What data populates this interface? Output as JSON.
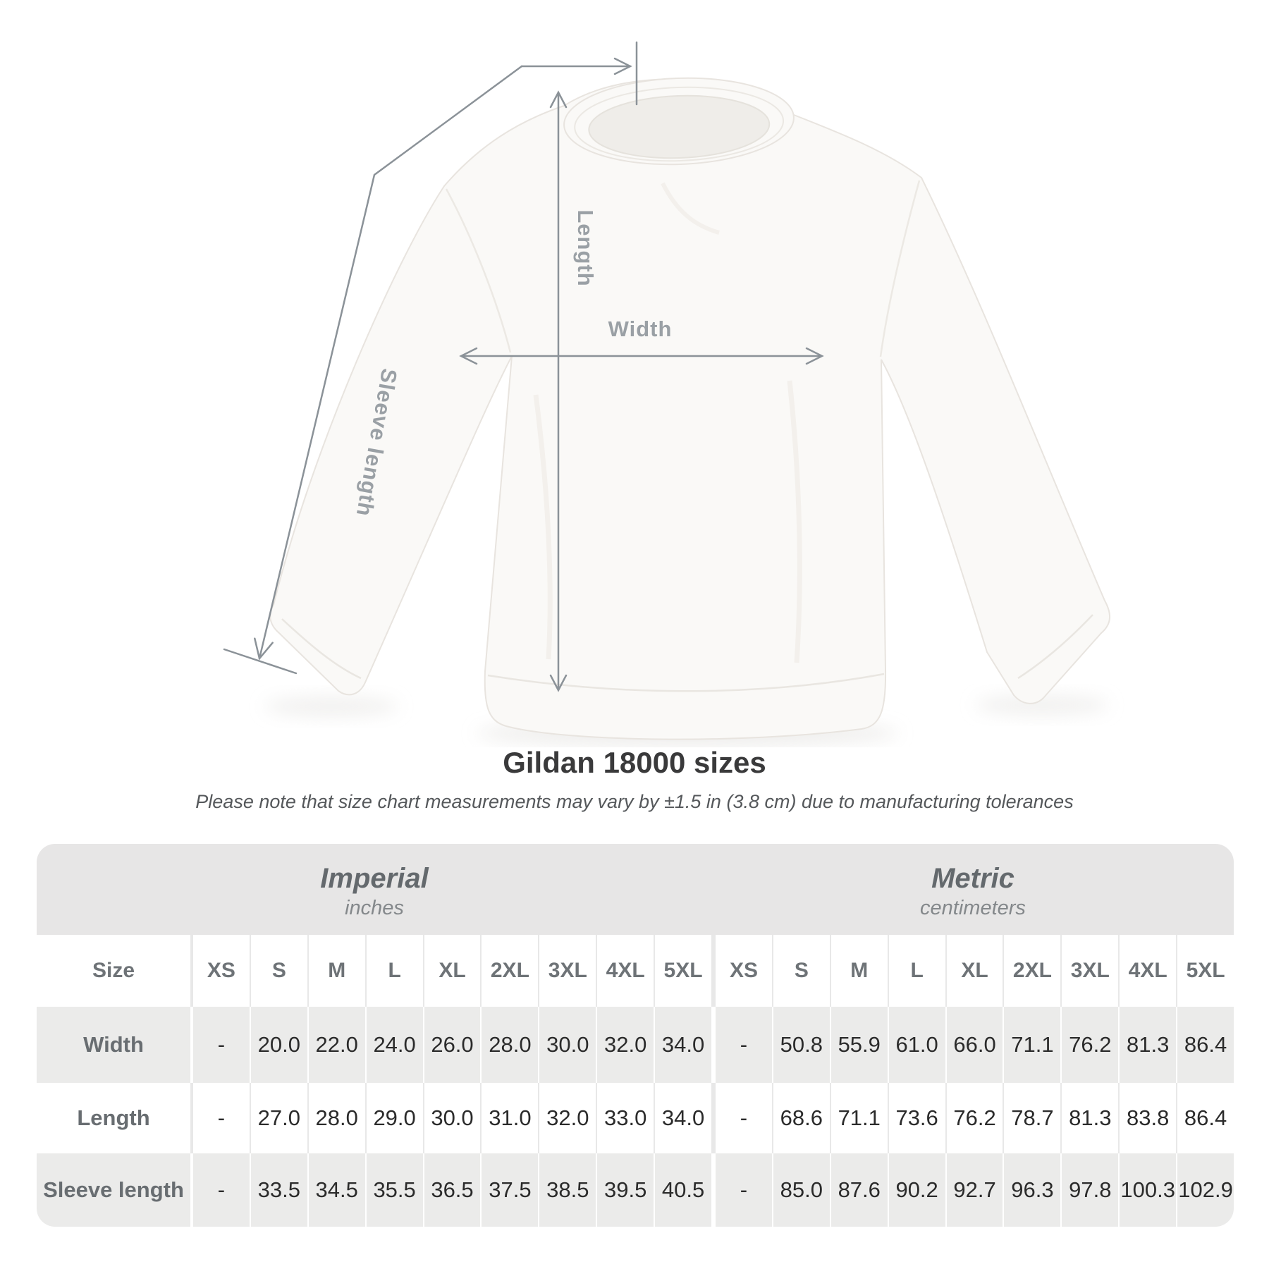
{
  "diagram": {
    "labels": {
      "length": "Length",
      "width": "Width",
      "sleeve": "Sleeve length"
    },
    "line_color": "#8b9298",
    "label_color": "#9aa0a5"
  },
  "heading": {
    "title": "Gildan 18000 sizes",
    "note": "Please note that size chart measurements may vary by ±1.5 in (3.8 cm) due to manufacturing tolerances"
  },
  "table": {
    "groups": [
      {
        "label": "Imperial",
        "sublabel": "inches"
      },
      {
        "label": "Metric",
        "sublabel": "centimeters"
      }
    ],
    "size_header": "Size",
    "sizes": [
      "XS",
      "S",
      "M",
      "L",
      "XL",
      "2XL",
      "3XL",
      "4XL",
      "5XL"
    ],
    "rows": [
      {
        "label": "Width",
        "imperial": [
          "-",
          "20.0",
          "22.0",
          "24.0",
          "26.0",
          "28.0",
          "30.0",
          "32.0",
          "34.0"
        ],
        "metric": [
          "-",
          "50.8",
          "55.9",
          "61.0",
          "66.0",
          "71.1",
          "76.2",
          "81.3",
          "86.4"
        ]
      },
      {
        "label": "Length",
        "imperial": [
          "-",
          "27.0",
          "28.0",
          "29.0",
          "30.0",
          "31.0",
          "32.0",
          "33.0",
          "34.0"
        ],
        "metric": [
          "-",
          "68.6",
          "71.1",
          "73.6",
          "76.2",
          "78.7",
          "81.3",
          "83.8",
          "86.4"
        ]
      },
      {
        "label": "Sleeve length",
        "imperial": [
          "-",
          "33.5",
          "34.5",
          "35.5",
          "36.5",
          "37.5",
          "38.5",
          "39.5",
          "40.5"
        ],
        "metric": [
          "-",
          "85.0",
          "87.6",
          "90.2",
          "92.7",
          "96.3",
          "97.8",
          "100.3",
          "102.9"
        ]
      }
    ]
  },
  "colors": {
    "band_bg": "#e7e6e6",
    "gray_row_bg": "#ebebea",
    "value_text": "#2b2b2b",
    "label_text": "#686d71",
    "title_text": "#3a3a3b"
  }
}
